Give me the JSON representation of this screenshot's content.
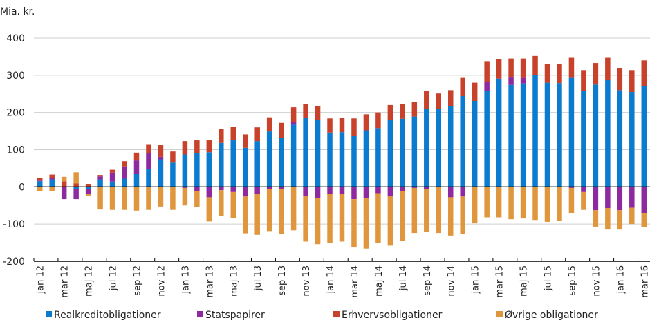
{
  "chart_data": {
    "type": "bar",
    "stacked": true,
    "title": "",
    "ylabel": "Mia. kr.",
    "xlabel": "",
    "ylim": [
      -200,
      400
    ],
    "yticks": [
      400,
      300,
      200,
      100,
      0,
      -100,
      -200
    ],
    "grid": true,
    "legend_position": "bottom",
    "categories": [
      "jan 12",
      "feb 12",
      "mar 12",
      "apr 12",
      "maj 12",
      "jun 12",
      "jul 12",
      "aug 12",
      "sep 12",
      "okt 12",
      "nov 12",
      "dec 12",
      "jan 13",
      "feb 13",
      "mar 13",
      "apr 13",
      "maj 13",
      "jun 13",
      "jul 13",
      "aug 13",
      "sep 13",
      "okt 13",
      "nov 13",
      "dec 13",
      "jan 14",
      "feb 14",
      "mar 14",
      "apr 14",
      "maj 14",
      "jun 14",
      "jul 14",
      "aug 14",
      "sep 14",
      "okt 14",
      "nov 14",
      "dec 14",
      "jan 15",
      "feb 15",
      "mar 15",
      "apr 15",
      "maj 15",
      "jun 15",
      "jul 15",
      "aug 15",
      "sep 15",
      "okt 15",
      "nov 15",
      "dec 15",
      "jan 16",
      "feb 16",
      "mar 16"
    ],
    "xtick_labels": [
      "jan 12",
      "mar 12",
      "maj 12",
      "jul 12",
      "sep 12",
      "nov 12",
      "jan 13",
      "mar 13",
      "maj 13",
      "jul 13",
      "sep 13",
      "nov 13",
      "jan 14",
      "mar 14",
      "maj 14",
      "jul 14",
      "sep 14",
      "nov 14",
      "jan 15",
      "mar 15",
      "maj 15",
      "jul 15",
      "sep 15",
      "nov 15",
      "jan 16",
      "mar 16"
    ],
    "series": [
      {
        "name": "Realkreditobligationer",
        "color": "#0B7BD0",
        "values": [
          15,
          20,
          0,
          -6,
          -6,
          20,
          14,
          22,
          34,
          48,
          74,
          65,
          87,
          90,
          93,
          118,
          125,
          105,
          123,
          149,
          131,
          167,
          185,
          180,
          146,
          147,
          138,
          152,
          158,
          180,
          183,
          189,
          209,
          209,
          217,
          244,
          231,
          257,
          291,
          274,
          278,
          300,
          280,
          279,
          293,
          257,
          275,
          288,
          260,
          255,
          271
        ]
      },
      {
        "name": "Statspapirer",
        "color": "#8E2AA0",
        "values": [
          2,
          4,
          -33,
          -27,
          -14,
          8,
          24,
          33,
          37,
          43,
          7,
          0,
          -3,
          -12,
          -28,
          -9,
          -14,
          -26,
          -19,
          -5,
          -5,
          8,
          -24,
          -30,
          -19,
          -19,
          -33,
          -31,
          -17,
          -26,
          -12,
          -3,
          -5,
          0,
          -28,
          -26,
          0,
          25,
          0,
          20,
          15,
          0,
          0,
          0,
          -3,
          -14,
          -63,
          -57,
          -63,
          -56,
          -70
        ]
      },
      {
        "name": "Erhvervsobligationer",
        "color": "#C8412A",
        "values": [
          6,
          9,
          15,
          9,
          8,
          4,
          8,
          14,
          21,
          22,
          31,
          30,
          36,
          35,
          32,
          37,
          36,
          36,
          37,
          38,
          41,
          39,
          38,
          38,
          38,
          39,
          46,
          43,
          42,
          40,
          40,
          40,
          48,
          42,
          43,
          49,
          49,
          56,
          53,
          51,
          52,
          52,
          50,
          51,
          54,
          57,
          58,
          59,
          59,
          59,
          69
        ]
      },
      {
        "name": "Øvrige obligationer",
        "color": "#E0963D",
        "values": [
          -12,
          -12,
          12,
          30,
          -5,
          -61,
          -62,
          -62,
          -64,
          -62,
          -53,
          -62,
          -47,
          -43,
          -65,
          -70,
          -70,
          -99,
          -110,
          -114,
          -121,
          -117,
          -123,
          -124,
          -131,
          -128,
          -130,
          -135,
          -133,
          -132,
          -133,
          -121,
          -116,
          -124,
          -103,
          -100,
          -98,
          -82,
          -82,
          -87,
          -85,
          -89,
          -94,
          -91,
          -67,
          -48,
          -44,
          -56,
          -50,
          -44,
          -38
        ]
      }
    ]
  }
}
